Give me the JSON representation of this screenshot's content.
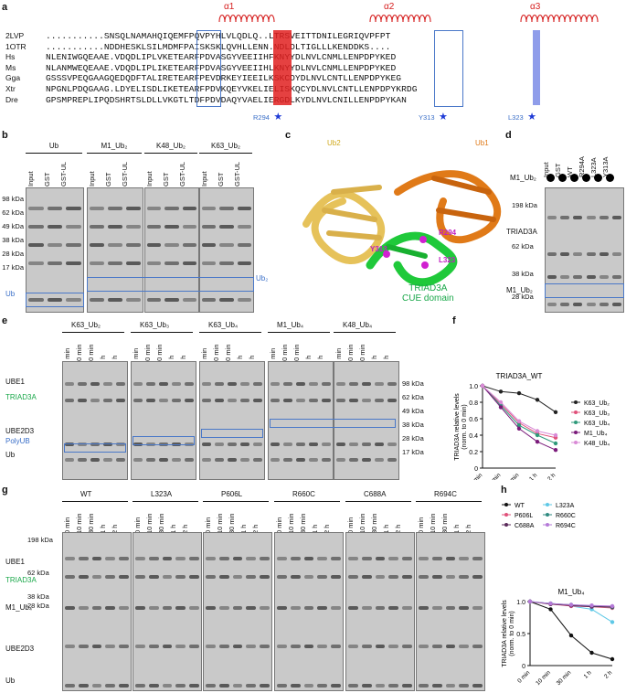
{
  "panel_labels": [
    "a",
    "b",
    "c",
    "d",
    "e",
    "f",
    "g",
    "h"
  ],
  "panel_a": {
    "helices": [
      "α1",
      "α2",
      "α3"
    ],
    "rows": [
      {
        "species": "2LVP",
        "seq": "...........SNSQLNAMAHQIQEMFPQVPYHLVLQDLQ..LTRSVEITTDNILEGRIQVPFPT"
      },
      {
        "species": "1OTR",
        "seq": "...........NDDHESKLSILMDMFPAISKSKLQVHLLENN.NDLDLTIGLLLKENDDKS...."
      },
      {
        "species": "Hs",
        "seq": "NLENIWGQEAAE.VDQDLIPLVKETEARFPDVASGYVEEIIHFKNYYDLNVLCNMLLENPDPYKED"
      },
      {
        "species": "Ms",
        "seq": "NLANMWEQEAAE.VDQDLIPLIKETEARFPDVASGYVEEIIHLKNYYDLNVLCNMLLENPDPYKED"
      },
      {
        "species": "Gga",
        "seq": "GSSSVPEQGAAGQEDQDFTALIRETEARFPEVDRKEYIEEILKSKCDYDLNVLCNTLLENPDPYKEG"
      },
      {
        "species": "Xtr",
        "seq": "NPGNLPDQGAAG.LDYELISDLIKETEARFPDVKQEYVKELIELISKQCYDLNVLCNTLLENPDPYKRDG"
      },
      {
        "species": "Dre",
        "seq": "GPSMPREPLIPQDSHRTSLDLLVKGTLTDFPDVDAQYVAELIERGDLKYDLNVLCNILLENPDPYKAN"
      }
    ],
    "marks": [
      {
        "label": "R294"
      },
      {
        "label": "Y313"
      },
      {
        "label": "L323"
      }
    ]
  },
  "panel_b": {
    "groups": [
      "Ub",
      "M1_Ub₂",
      "K48_Ub₂",
      "K63_Ub₂"
    ],
    "lanes": [
      "Input",
      "GST",
      "GST-UL"
    ],
    "mw": [
      "98 kDa",
      "62 kDa",
      "49 kDa",
      "38 kDa",
      "28 kDa",
      "17 kDa"
    ],
    "left_label": "Ub",
    "right_label": "Ub₂"
  },
  "panel_c": {
    "labels": {
      "ub2": "Ub2",
      "ub1": "Ub1",
      "r294": "R294",
      "y313": "Y313",
      "l323": "L323",
      "domain1": "TRIAD3A",
      "domain2": "CUE domain"
    }
  },
  "panel_d": {
    "lanes": [
      "Input",
      "GST",
      "WT",
      "R294A",
      "L323A",
      "Y313A"
    ],
    "row_label": "M1_Ub₂",
    "mw": [
      "198 kDa",
      "62 kDa",
      "38 kDa",
      "28 kDa"
    ],
    "left_labels": [
      "TRIAD3A",
      "M1_Ub₂"
    ]
  },
  "panel_e": {
    "groups": [
      "K63_Ub₂",
      "K63_Ub₃",
      "K63_Ub₄",
      "M1_Ub₄",
      "K48_Ub₄"
    ],
    "times": [
      "0 min",
      "10 min",
      "30 min",
      "1 h",
      "2 h"
    ],
    "left_labels": [
      "UBE1",
      "TRIAD3A",
      "UBE2D3",
      "PolyUB",
      "Ub"
    ],
    "mw": [
      "98 kDa",
      "62 kDa",
      "49 kDa",
      "38 kDa",
      "28 kDa",
      "17 kDa"
    ]
  },
  "panel_g": {
    "groups": [
      "WT",
      "L323A",
      "P606L",
      "R660C",
      "C688A",
      "R694C"
    ],
    "times": [
      "0 min",
      "10 min",
      "30 min",
      "1 h",
      "2 h"
    ],
    "left_labels": [
      "UBE1",
      "TRIAD3A",
      "M1_Ub₄",
      "UBE2D3",
      "Ub"
    ],
    "mw": [
      "198 kDa",
      "62 kDa",
      "38 kDa",
      "28 kDa"
    ]
  },
  "chart_f": {
    "type": "line",
    "title": "TRIAD3A_WT",
    "ylabel": "TRIAD3A relative levels",
    "ylabel2": "(norm. to 0 min)",
    "categories": [
      "0 min",
      "10 min",
      "30 min",
      "1 h",
      "2 h"
    ],
    "ylim": [
      0,
      1.0
    ],
    "yticks": [
      "0",
      "0.2",
      "0.4",
      "0.6",
      "0.8",
      "1.0"
    ],
    "series": [
      {
        "name": "K63_Ub₂",
        "color": "#222222",
        "values": [
          1.0,
          0.93,
          0.91,
          0.83,
          0.68
        ]
      },
      {
        "name": "K63_Ub₃",
        "color": "#e0507a",
        "values": [
          1.0,
          0.78,
          0.55,
          0.42,
          0.37
        ]
      },
      {
        "name": "K63_Ub₄",
        "color": "#2e9a7a",
        "values": [
          1.0,
          0.76,
          0.52,
          0.4,
          0.3
        ]
      },
      {
        "name": "M1_Ub₄",
        "color": "#7a1a7a",
        "values": [
          1.0,
          0.74,
          0.48,
          0.32,
          0.22
        ]
      },
      {
        "name": "K48_Ub₄",
        "color": "#d98ad6",
        "values": [
          1.0,
          0.8,
          0.57,
          0.45,
          0.4
        ]
      }
    ]
  },
  "chart_h": {
    "type": "line",
    "title": "M1_Ub₄",
    "ylabel": "TRIAD3A relative levels",
    "ylabel2": "(norm. to 0 min)",
    "categories": [
      "0 min",
      "10 min",
      "30 min",
      "1 h",
      "2 h"
    ],
    "ylim": [
      0,
      1.0
    ],
    "yticks": [
      "0",
      "0.5",
      "1.0"
    ],
    "series": [
      {
        "name": "WT",
        "color": "#111111",
        "values": [
          1.0,
          0.88,
          0.47,
          0.2,
          0.1
        ]
      },
      {
        "name": "L323A",
        "color": "#5ec8e6",
        "values": [
          1.0,
          0.97,
          0.93,
          0.88,
          0.68
        ]
      },
      {
        "name": "P606L",
        "color": "#e0507a",
        "values": [
          1.0,
          0.96,
          0.93,
          0.92,
          0.9
        ]
      },
      {
        "name": "R660C",
        "color": "#2e8a80",
        "values": [
          1.0,
          0.97,
          0.95,
          0.93,
          0.91
        ]
      },
      {
        "name": "C688A",
        "color": "#5a2a5a",
        "values": [
          1.0,
          0.96,
          0.94,
          0.92,
          0.92
        ]
      },
      {
        "name": "R694C",
        "color": "#b57ad8",
        "values": [
          1.0,
          0.97,
          0.95,
          0.94,
          0.93
        ]
      }
    ]
  }
}
